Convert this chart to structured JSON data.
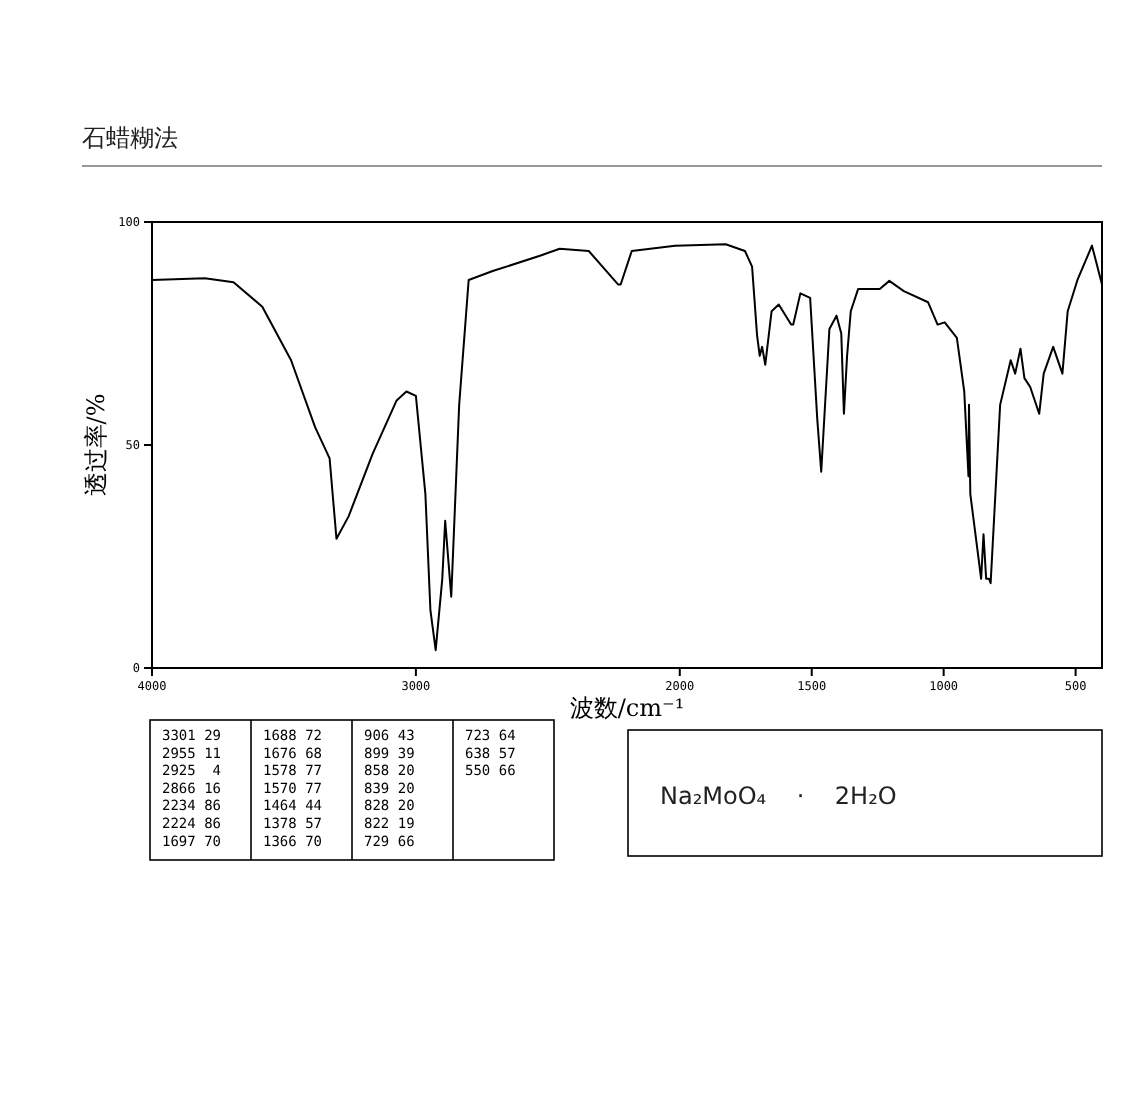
{
  "chart_data": {
    "type": "line",
    "title": "石蜡糊法",
    "xlabel": "波数/cm⁻¹",
    "ylabel": "透过率/%",
    "xlim": [
      4000,
      400
    ],
    "xticks": [
      4000,
      3000,
      2000,
      1500,
      1000,
      500
    ],
    "ylim": [
      0,
      100
    ],
    "yticks": [
      0,
      50,
      100
    ],
    "grid": false,
    "marker": "none",
    "line_style": "solid",
    "series": [
      {
        "color": "#000000",
        "x": [
          4000,
          3800,
          3691,
          3582,
          3473,
          3382,
          3327,
          3301,
          3255,
          3164,
          3073,
          3036,
          3000,
          2964,
          2945,
          2925,
          2900,
          2889,
          2866,
          2836,
          2800,
          2709,
          2527,
          2455,
          2345,
          2234,
          2224,
          2182,
          2018,
          1826,
          1753,
          1726,
          1707,
          1697,
          1688,
          1676,
          1652,
          1625,
          1578,
          1570,
          1543,
          1506,
          1479,
          1464,
          1433,
          1406,
          1388,
          1378,
          1366,
          1352,
          1324,
          1242,
          1206,
          1151,
          1059,
          1023,
          996,
          950,
          922,
          906,
          904,
          899,
          858,
          849,
          839,
          828,
          822,
          786,
          746,
          729,
          709,
          694,
          672,
          638,
          621,
          585,
          550,
          530,
          493,
          438,
          400
        ],
        "values": [
          87,
          87.4,
          86.5,
          81,
          69,
          54,
          47,
          29,
          34,
          48,
          60,
          62,
          61,
          39,
          13,
          4,
          20,
          33,
          16,
          59,
          87,
          89,
          92.5,
          94,
          93.5,
          86,
          86,
          93.5,
          94.7,
          95,
          93.5,
          90,
          74.5,
          70,
          72,
          68,
          80,
          81.5,
          77,
          77,
          84,
          83,
          55.8,
          44,
          76,
          79,
          75,
          57,
          70,
          80,
          85,
          85,
          86.8,
          84.5,
          82,
          77,
          77.5,
          74,
          62,
          43,
          59,
          39,
          20,
          30,
          20,
          20,
          19,
          59,
          69,
          66,
          71.6,
          65,
          63,
          57,
          66,
          72,
          66,
          80,
          87,
          94.7,
          86
        ]
      }
    ],
    "annotations": [
      "3301 29",
      "2955 11",
      "2925  4",
      "2866 16",
      "2234 86",
      "2224 86",
      "1697 70",
      "1688 72",
      "1676 68",
      "1578 77",
      "1570 77",
      "1464 44",
      "1378 57",
      "1366 70",
      "906 43",
      "899 39",
      "858 20",
      "839 20",
      "828 20",
      "822 19",
      "729 66",
      "723 64",
      "638 57",
      "550 66",
      "Na₂MoO₄    ·    2H₂O"
    ]
  }
}
